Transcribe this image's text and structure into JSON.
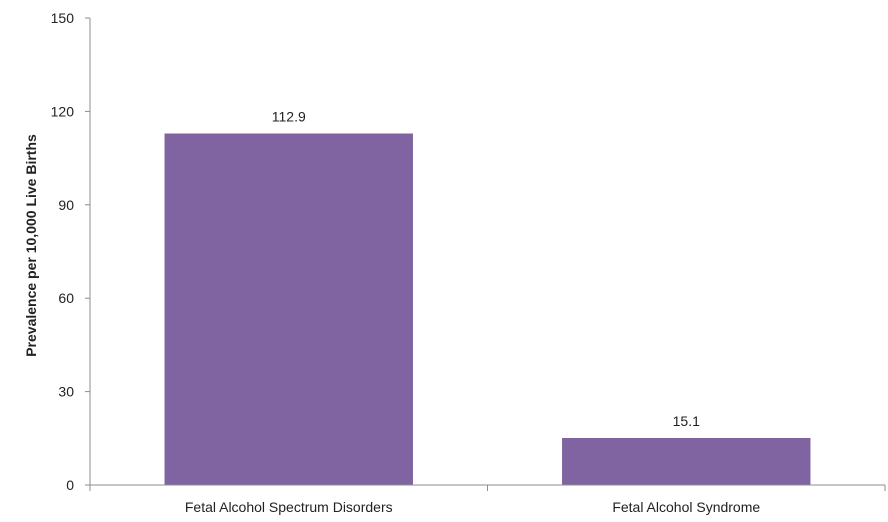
{
  "chart_data": {
    "type": "bar",
    "title": "",
    "xlabel": "",
    "ylabel": "Prevalence per 10,000 Live Births",
    "categories": [
      "Fetal Alcohol Spectrum Disorders",
      "Fetal Alcohol Syndrome"
    ],
    "values": [
      112.9,
      15.1
    ],
    "data_labels": [
      "112.9",
      "15.1"
    ],
    "yticks": [
      0,
      30,
      60,
      90,
      120,
      150
    ],
    "ylim": [
      0,
      150
    ],
    "grid": false,
    "legend": "none",
    "bar_color": "#8064A2",
    "axis_color": "#8C8C8C"
  }
}
